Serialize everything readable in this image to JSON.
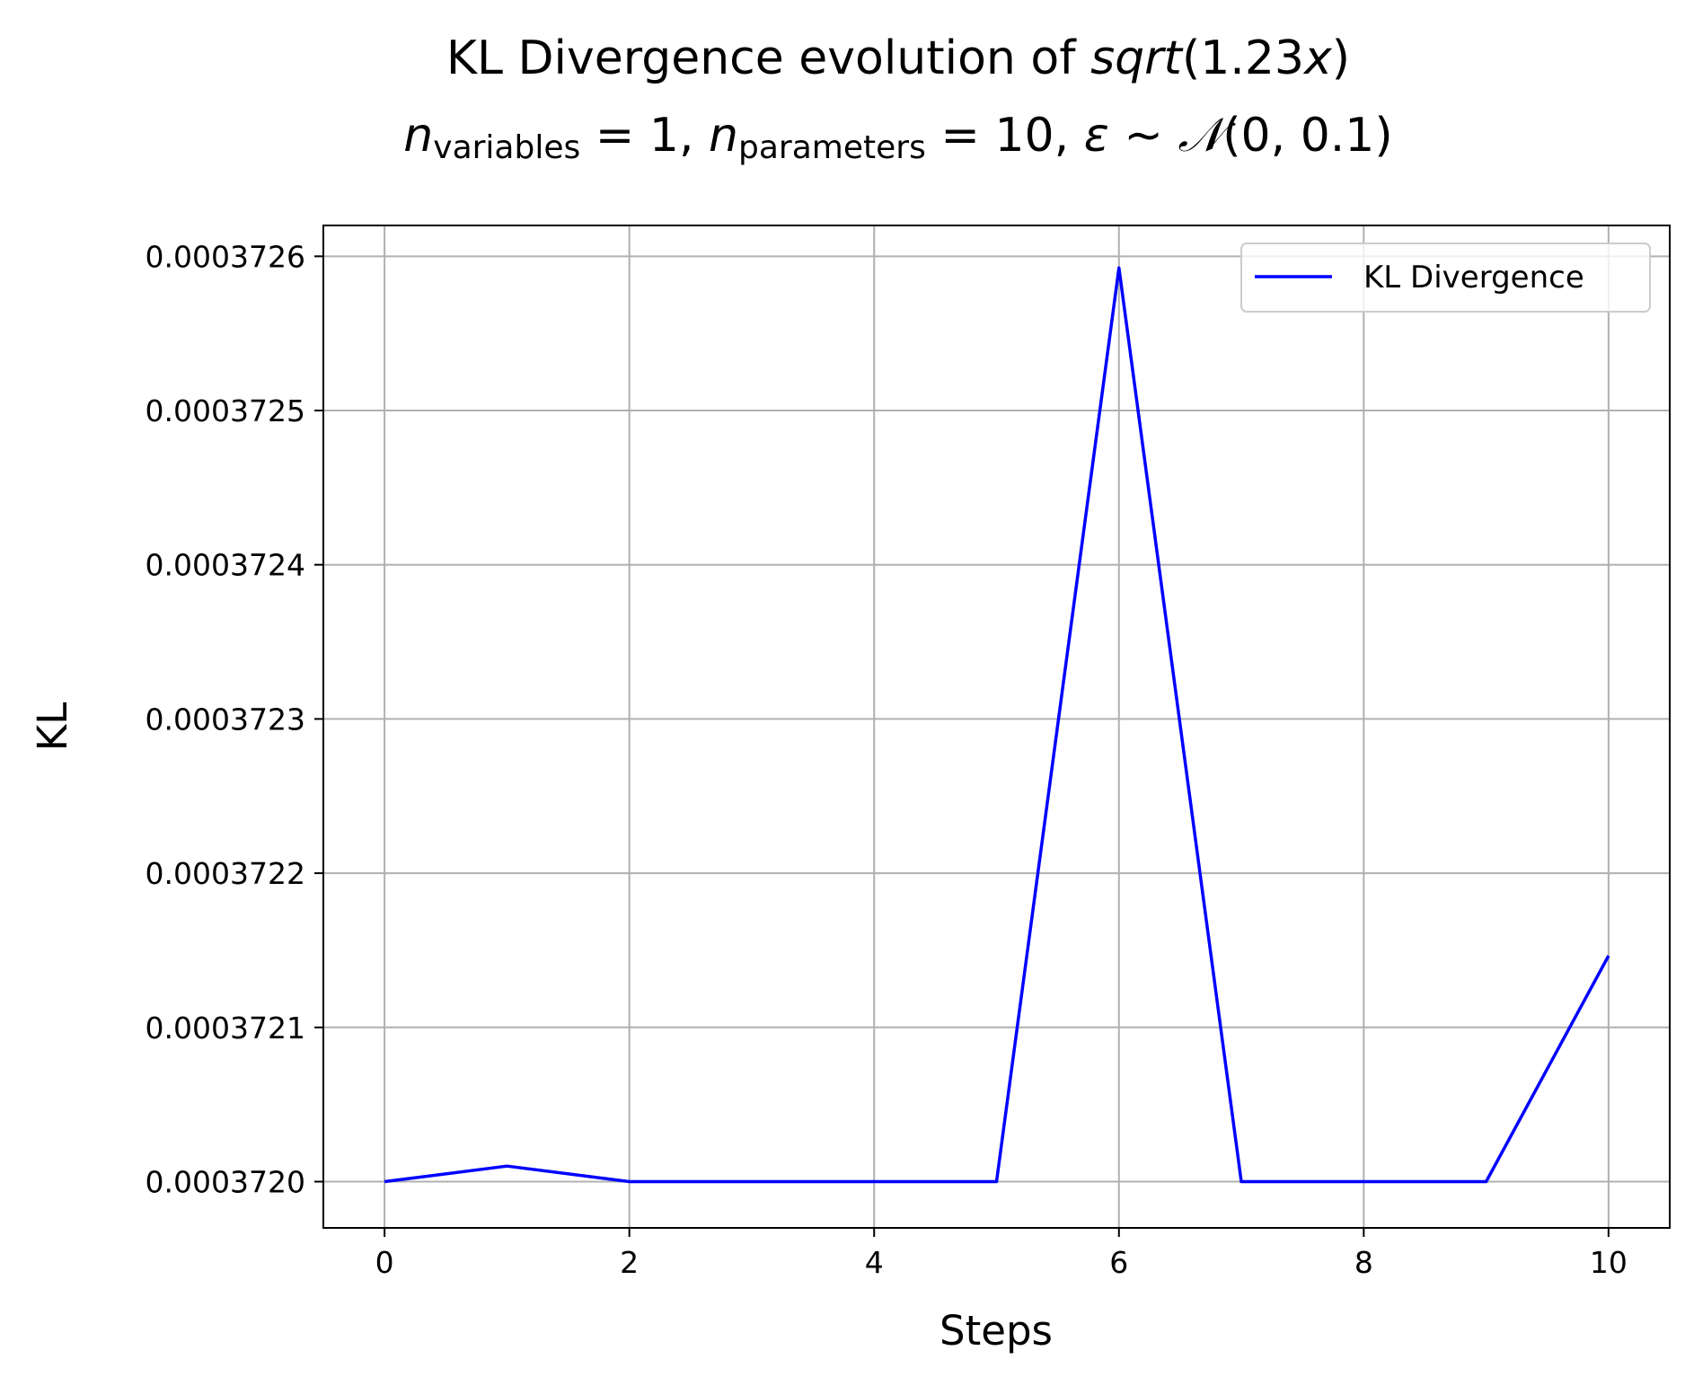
{
  "chart_data": {
    "type": "line",
    "title": {
      "line1_prefix": "KL Divergence evolution of ",
      "line1_func": "sqrt",
      "line1_arg_open": "(1.23",
      "line1_var": "x",
      "line1_arg_close": ")",
      "line2_n1": "n",
      "line2_sub1": "variables",
      "line2_eq1": " = 1, ",
      "line2_n2": "n",
      "line2_sub2": "parameters",
      "line2_eq2": " = 10, ",
      "line2_eps": "ε",
      "line2_tilde": " ~ ",
      "line2_dist": "𝒩",
      "line2_params": "(0, 0.1)"
    },
    "xlabel": "Steps",
    "ylabel": "KL",
    "xlim": [
      -0.5,
      10.5
    ],
    "ylim": [
      0.00037197,
      0.00037262
    ],
    "xticks": [
      0,
      2,
      4,
      6,
      8,
      10
    ],
    "xtick_labels": [
      "0",
      "2",
      "4",
      "6",
      "8",
      "10"
    ],
    "yticks": [
      0.000372,
      0.0003721,
      0.0003722,
      0.0003723,
      0.0003724,
      0.0003725,
      0.0003726
    ],
    "ytick_labels": [
      "0.0003720",
      "0.0003721",
      "0.0003722",
      "0.0003723",
      "0.0003724",
      "0.0003725",
      "0.0003726"
    ],
    "grid": true,
    "legend_position": "upper-right",
    "series": [
      {
        "name": "KL Divergence",
        "color": "#0000ff",
        "x": [
          0,
          1,
          2,
          3,
          4,
          5,
          6,
          7,
          8,
          9,
          10
        ],
        "y": [
          0.000372,
          0.0003720101,
          0.000372,
          0.000372,
          0.000372,
          0.000372,
          0.0003725925,
          0.000372,
          0.000372,
          0.000372,
          0.0003721465
        ]
      }
    ]
  }
}
